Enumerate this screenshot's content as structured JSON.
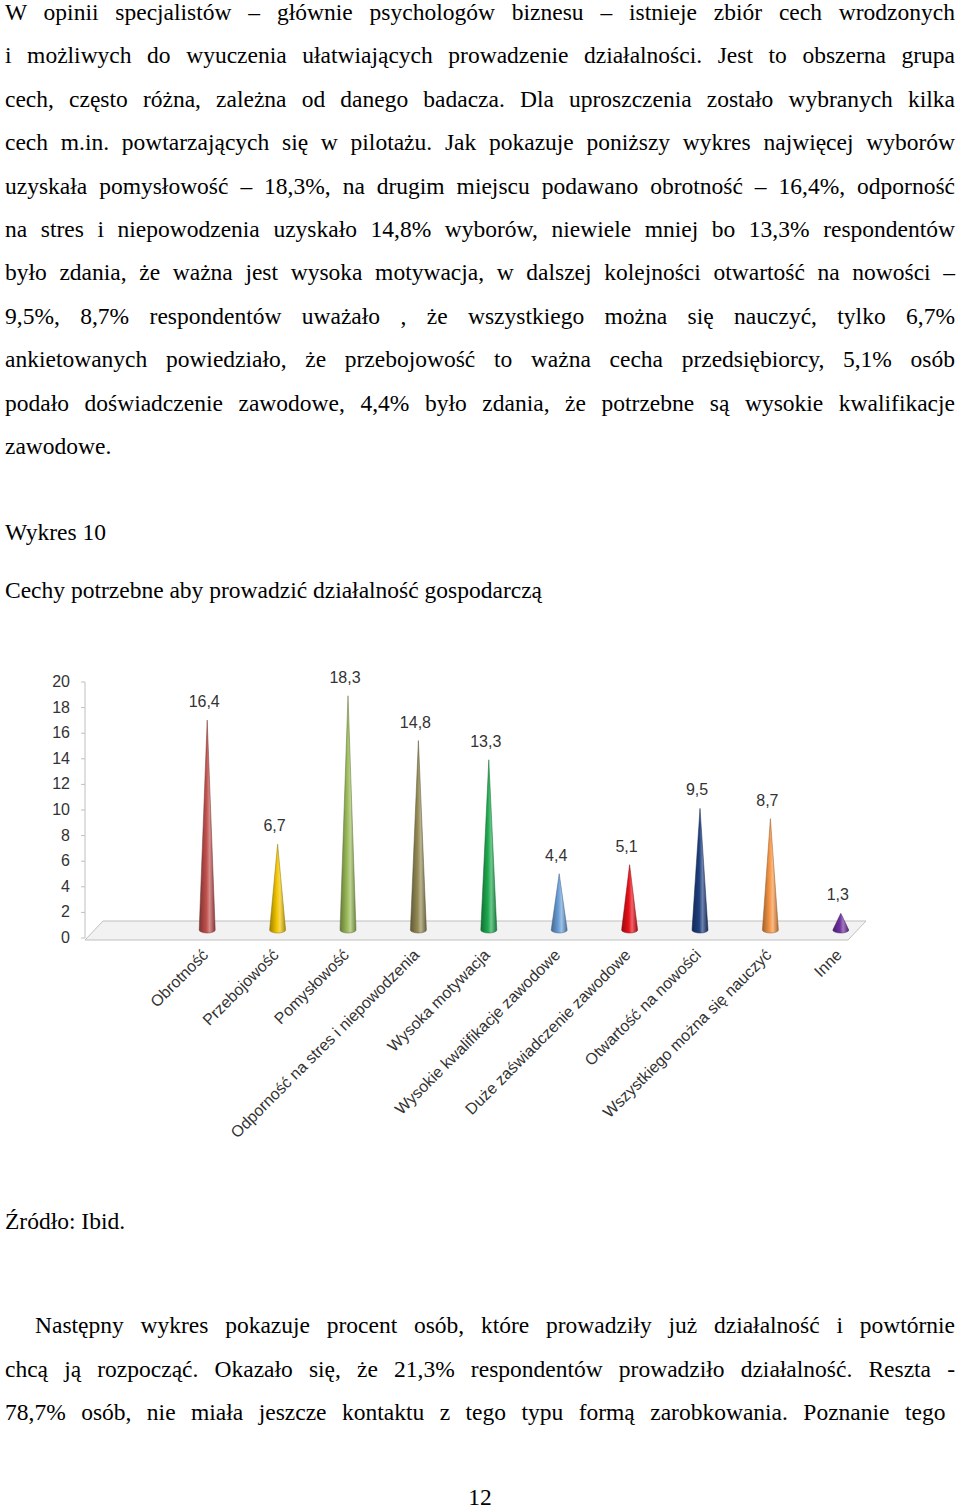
{
  "document": {
    "paragraph_1": [
      "W opinii specjalistów – głównie psychologów biznesu – istnieje zbiór cech wrodzonych",
      "i możliwych do wyuczenia ułatwiających prowadzenie działalności. Jest to obszerna grupa",
      "cech, często różna, zależna od danego badacza. Dla uproszczenia zostało wybranych kilka",
      "cech m.in. powtarzających się w pilotażu. Jak pokazuje poniższy wykres najwięcej wyborów",
      "uzyskała pomysłowość – 18,3%, na drugim miejscu podawano obrotność – 16,4%, odporność",
      "na stres i niepowodzenia uzyskało 14,8% wyborów, niewiele mniej bo 13,3% respondentów",
      "było zdania, że ważna jest wysoka motywacja, w dalszej kolejności otwartość na nowości –",
      "9,5%, 8,7% respondentów uważało , że wszystkiego można się nauczyć, tylko 6,7%",
      "ankietowanych powiedziało, że przebojowość to ważna cecha przedsiębiorcy, 5,1% osób",
      "podało doświadczenie zawodowe, 4,4% było zdania, że potrzebne są wysokie kwalifikacje",
      "zawodowe."
    ],
    "figure_label": "Wykres 10",
    "source": "Źródło: Ibid.",
    "paragraph_2": [
      "Następny wykres pokazuje procent osób, które prowadziły już działalność i powtórnie",
      "chcą ją rozpocząć. Okazało się, że 21,3% respondentów prowadziło działalność. Reszta -",
      "78,7%  osób, nie miała jeszcze kontaktu z tego typu formą zarobkowania. Poznanie tego"
    ],
    "page_number": "12"
  },
  "chart_data": {
    "type": "bar",
    "title": "Cechy potrzebne aby prowadzić działalność gospodarczą",
    "categories": [
      "Obrotność",
      "Przebojowość",
      "Pomysłowość",
      "Odporność na stres i niepowodzenia",
      "Wysoka motywacja",
      "Wysokie kwalifikacje zawodowe",
      "Duże zaświadczenie zawodowe",
      "Otwartość na nowości",
      "Wszystkiego można się nauczyć",
      "Inne"
    ],
    "values": [
      16.4,
      6.7,
      18.3,
      14.8,
      13.3,
      4.4,
      5.1,
      9.5,
      8.7,
      1.3
    ],
    "value_labels": [
      "16,4",
      "6,7",
      "18,3",
      "14,8",
      "13,3",
      "4,4",
      "5,1",
      "9,5",
      "8,7",
      "1,3"
    ],
    "colors": [
      "#c0504d",
      "#f2c500",
      "#9bbb59",
      "#948a54",
      "#1faa4f",
      "#6a9fd8",
      "#e8101a",
      "#1f3f7f",
      "#f79646",
      "#7030a0"
    ],
    "ylim": [
      0,
      20
    ],
    "yticks": [
      0,
      2,
      4,
      6,
      8,
      10,
      12,
      14,
      16,
      18,
      20
    ],
    "data_labels": true
  }
}
